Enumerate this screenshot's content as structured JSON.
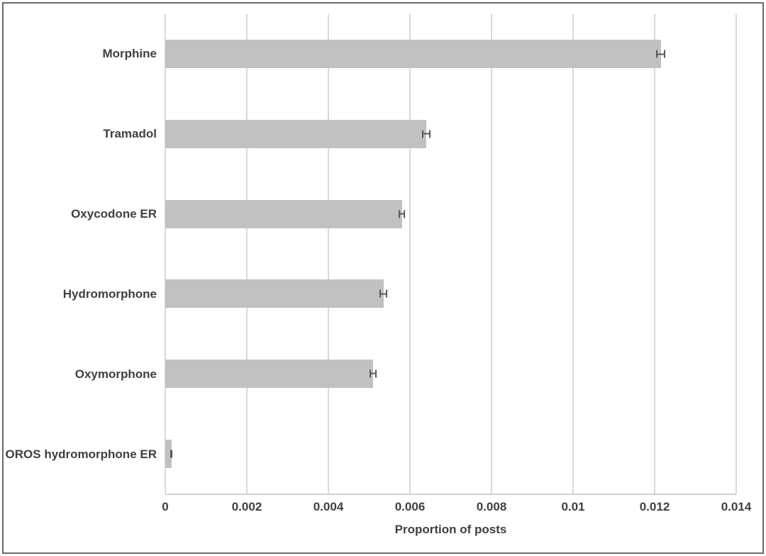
{
  "chart_data": {
    "type": "bar",
    "orientation": "horizontal",
    "title": "",
    "xlabel": "Proportion of posts",
    "ylabel": "",
    "categories": [
      "Morphine",
      "Tramadol",
      "Oxycodone ER",
      "Hydromorphone",
      "Oxymorphone",
      "OROS hydromorphone ER"
    ],
    "values": [
      0.01215,
      0.0064,
      0.0058,
      0.00535,
      0.0051,
      0.00015
    ],
    "error_bars": [
      0.00011,
      0.0001,
      8e-05,
      0.0001,
      9e-05,
      3e-05
    ],
    "xlim": [
      0,
      0.014
    ],
    "xticks": [
      0,
      0.002,
      0.004,
      0.006,
      0.008,
      0.01,
      0.012,
      0.014
    ],
    "xtick_labels": [
      "0",
      "0.002",
      "0.004",
      "0.006",
      "0.008",
      "0.01",
      "0.012",
      "0.014"
    ],
    "grid": "vertical-gridlines-on",
    "legend": "none",
    "colors": {
      "bar": "#c1c1c1",
      "gridline": "#d9d9d9",
      "error_bar": "#595959",
      "text": "#3f3f3f",
      "frame_border": "#6b6b6b",
      "background": "#ffffff"
    }
  }
}
